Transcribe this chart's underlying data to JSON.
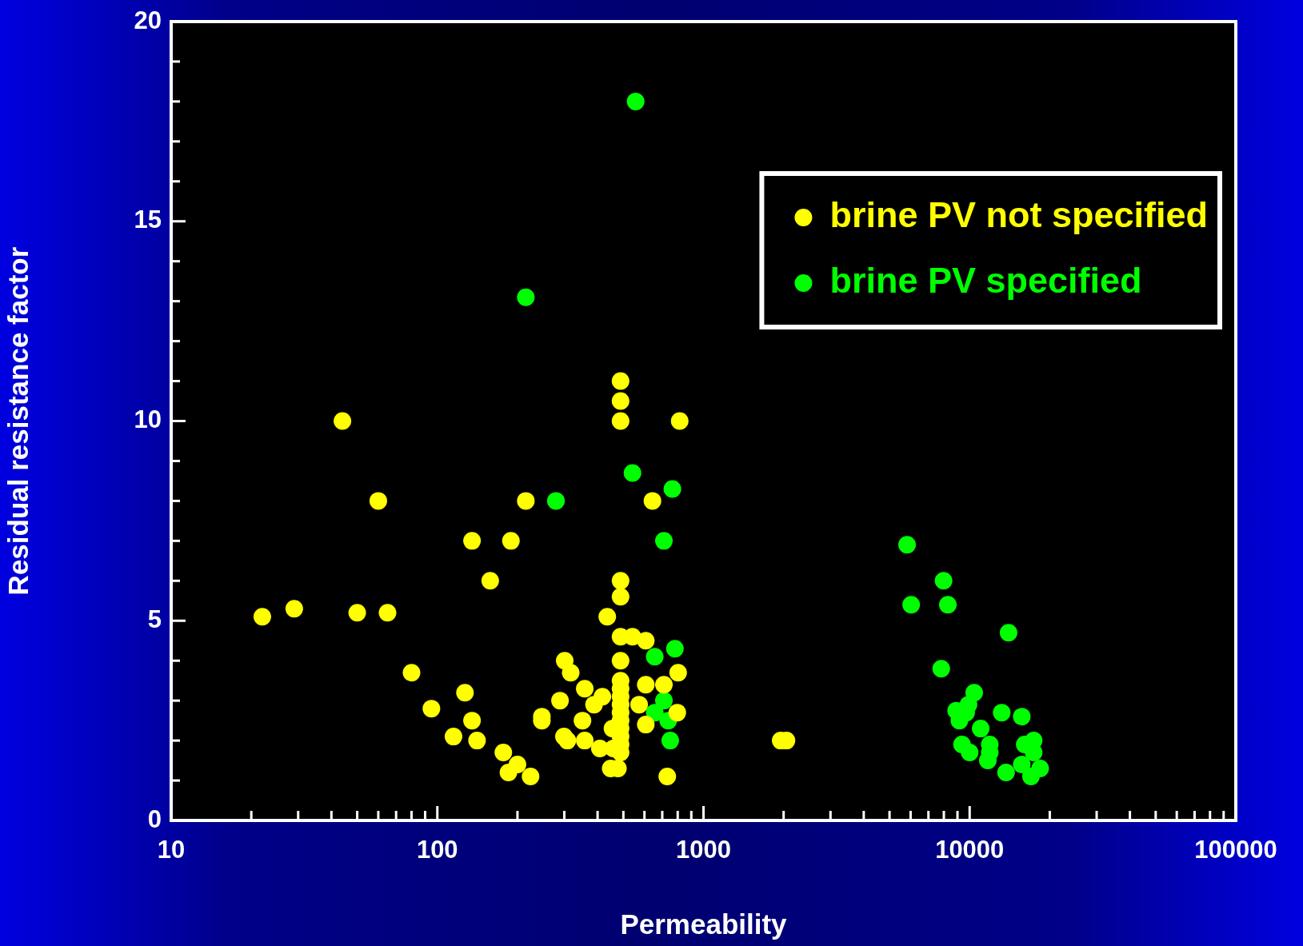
{
  "chart_data": {
    "type": "scatter",
    "xlabel": "Permeability",
    "ylabel": "Residual resistance factor",
    "log": "x",
    "grid": false,
    "legend": "top right",
    "marker": "circle",
    "xlim": [
      10,
      100000
    ],
    "ylim": [
      0,
      20
    ],
    "xticks": [
      10,
      {
        "value": 20,
        "label": null
      },
      {
        "value": 30,
        "label": null
      },
      {
        "value": 40,
        "label": null
      },
      {
        "value": 50,
        "label": null
      },
      {
        "value": 60,
        "label": null
      },
      {
        "value": 70,
        "label": null
      },
      {
        "value": 80,
        "label": null
      },
      {
        "value": 90,
        "label": null
      },
      100,
      {
        "value": 200,
        "label": null
      },
      {
        "value": 300,
        "label": null
      },
      {
        "value": 400,
        "label": null
      },
      {
        "value": 500,
        "label": null
      },
      {
        "value": 600,
        "label": null
      },
      {
        "value": 700,
        "label": null
      },
      {
        "value": 800,
        "label": null
      },
      {
        "value": 900,
        "label": null
      },
      1000,
      {
        "value": 2000,
        "label": null
      },
      {
        "value": 3000,
        "label": null
      },
      {
        "value": 4000,
        "label": null
      },
      {
        "value": 5000,
        "label": null
      },
      {
        "value": 6000,
        "label": null
      },
      {
        "value": 7000,
        "label": null
      },
      {
        "value": 8000,
        "label": null
      },
      {
        "value": 9000,
        "label": null
      },
      10000,
      {
        "value": 20000,
        "label": null
      },
      {
        "value": 30000,
        "label": null
      },
      {
        "value": 40000,
        "label": null
      },
      {
        "value": 50000,
        "label": null
      },
      {
        "value": 60000,
        "label": null
      },
      {
        "value": 70000,
        "label": null
      },
      {
        "value": 80000,
        "label": null
      },
      {
        "value": 90000,
        "label": null
      },
      100000
    ],
    "yticks": [
      0,
      {
        "value": 1,
        "label": null
      },
      {
        "value": 2,
        "label": null
      },
      {
        "value": 3,
        "label": null
      },
      {
        "value": 4,
        "label": null
      },
      5,
      {
        "value": 6,
        "label": null
      },
      {
        "value": 7,
        "label": null
      },
      {
        "value": 8,
        "label": null
      },
      {
        "value": 9,
        "label": null
      },
      10,
      {
        "value": 11,
        "label": null
      },
      {
        "value": 12,
        "label": null
      },
      {
        "value": 13,
        "label": null
      },
      {
        "value": 14,
        "label": null
      },
      15,
      {
        "value": 16,
        "label": null
      },
      {
        "value": 17,
        "label": null
      },
      {
        "value": 18,
        "label": null
      },
      {
        "value": 19,
        "label": null
      },
      20
    ],
    "series": [
      {
        "name": "brine PV not specified",
        "color": "#ffff00",
        "x": [
          22,
          29,
          44,
          50,
          60,
          65,
          80,
          95,
          115,
          127,
          135,
          135,
          141,
          158,
          177,
          185,
          189,
          200,
          215,
          224,
          247,
          247,
          289,
          299,
          301,
          308,
          317,
          351,
          358,
          358,
          388,
          408,
          417,
          435,
          448,
          455,
          458,
          477,
          488,
          488,
          488,
          488,
          488,
          488,
          488,
          488,
          488,
          488,
          488,
          488,
          488,
          488,
          488,
          488,
          488,
          541,
          573,
          607,
          607,
          607,
          643,
          710,
          731,
          797,
          803,
          814,
          1950,
          2050
        ],
        "values": [
          5.1,
          5.3,
          10,
          5.2,
          8,
          5.2,
          3.7,
          2.8,
          2.1,
          3.2,
          7,
          2.5,
          2,
          6,
          1.7,
          1.2,
          7,
          1.4,
          8,
          1.1,
          2.6,
          2.5,
          3,
          2.1,
          4,
          2,
          3.7,
          2.5,
          3.3,
          2,
          2.9,
          1.8,
          3.1,
          5.1,
          1.3,
          2.3,
          1.8,
          1.3,
          11,
          10.5,
          10,
          6,
          5.6,
          4.6,
          4,
          3.5,
          3.3,
          3.1,
          2.9,
          2.7,
          2.5,
          2.3,
          2.1,
          1.9,
          1.7,
          4.6,
          2.9,
          4.5,
          3.4,
          2.4,
          8,
          3.4,
          1.1,
          2.7,
          3.7,
          10,
          2,
          2
        ]
      },
      {
        "name": "brine PV specified",
        "color": "#00ff00",
        "x": [
          215,
          279,
          541,
          556,
          656,
          656,
          710,
          710,
          737,
          750,
          764,
          781,
          5820,
          6030,
          7820,
          7980,
          8280,
          8900,
          9150,
          9360,
          9700,
          9900,
          10000,
          10400,
          11000,
          11700,
          11900,
          11900,
          13200,
          13700,
          14000,
          15700,
          15700,
          16100,
          17000,
          17400,
          17400,
          18400
        ],
        "values": [
          13.1,
          8,
          8.7,
          18,
          4.1,
          2.7,
          7,
          3,
          2.5,
          2,
          8.3,
          4.3,
          6.9,
          5.4,
          3.8,
          6,
          5.4,
          2.75,
          2.5,
          1.9,
          2.7,
          2.9,
          1.7,
          3.2,
          2.3,
          1.5,
          1.9,
          1.7,
          2.7,
          1.2,
          4.7,
          2.6,
          1.4,
          1.9,
          1.1,
          2,
          1.7,
          1.3
        ]
      }
    ]
  }
}
